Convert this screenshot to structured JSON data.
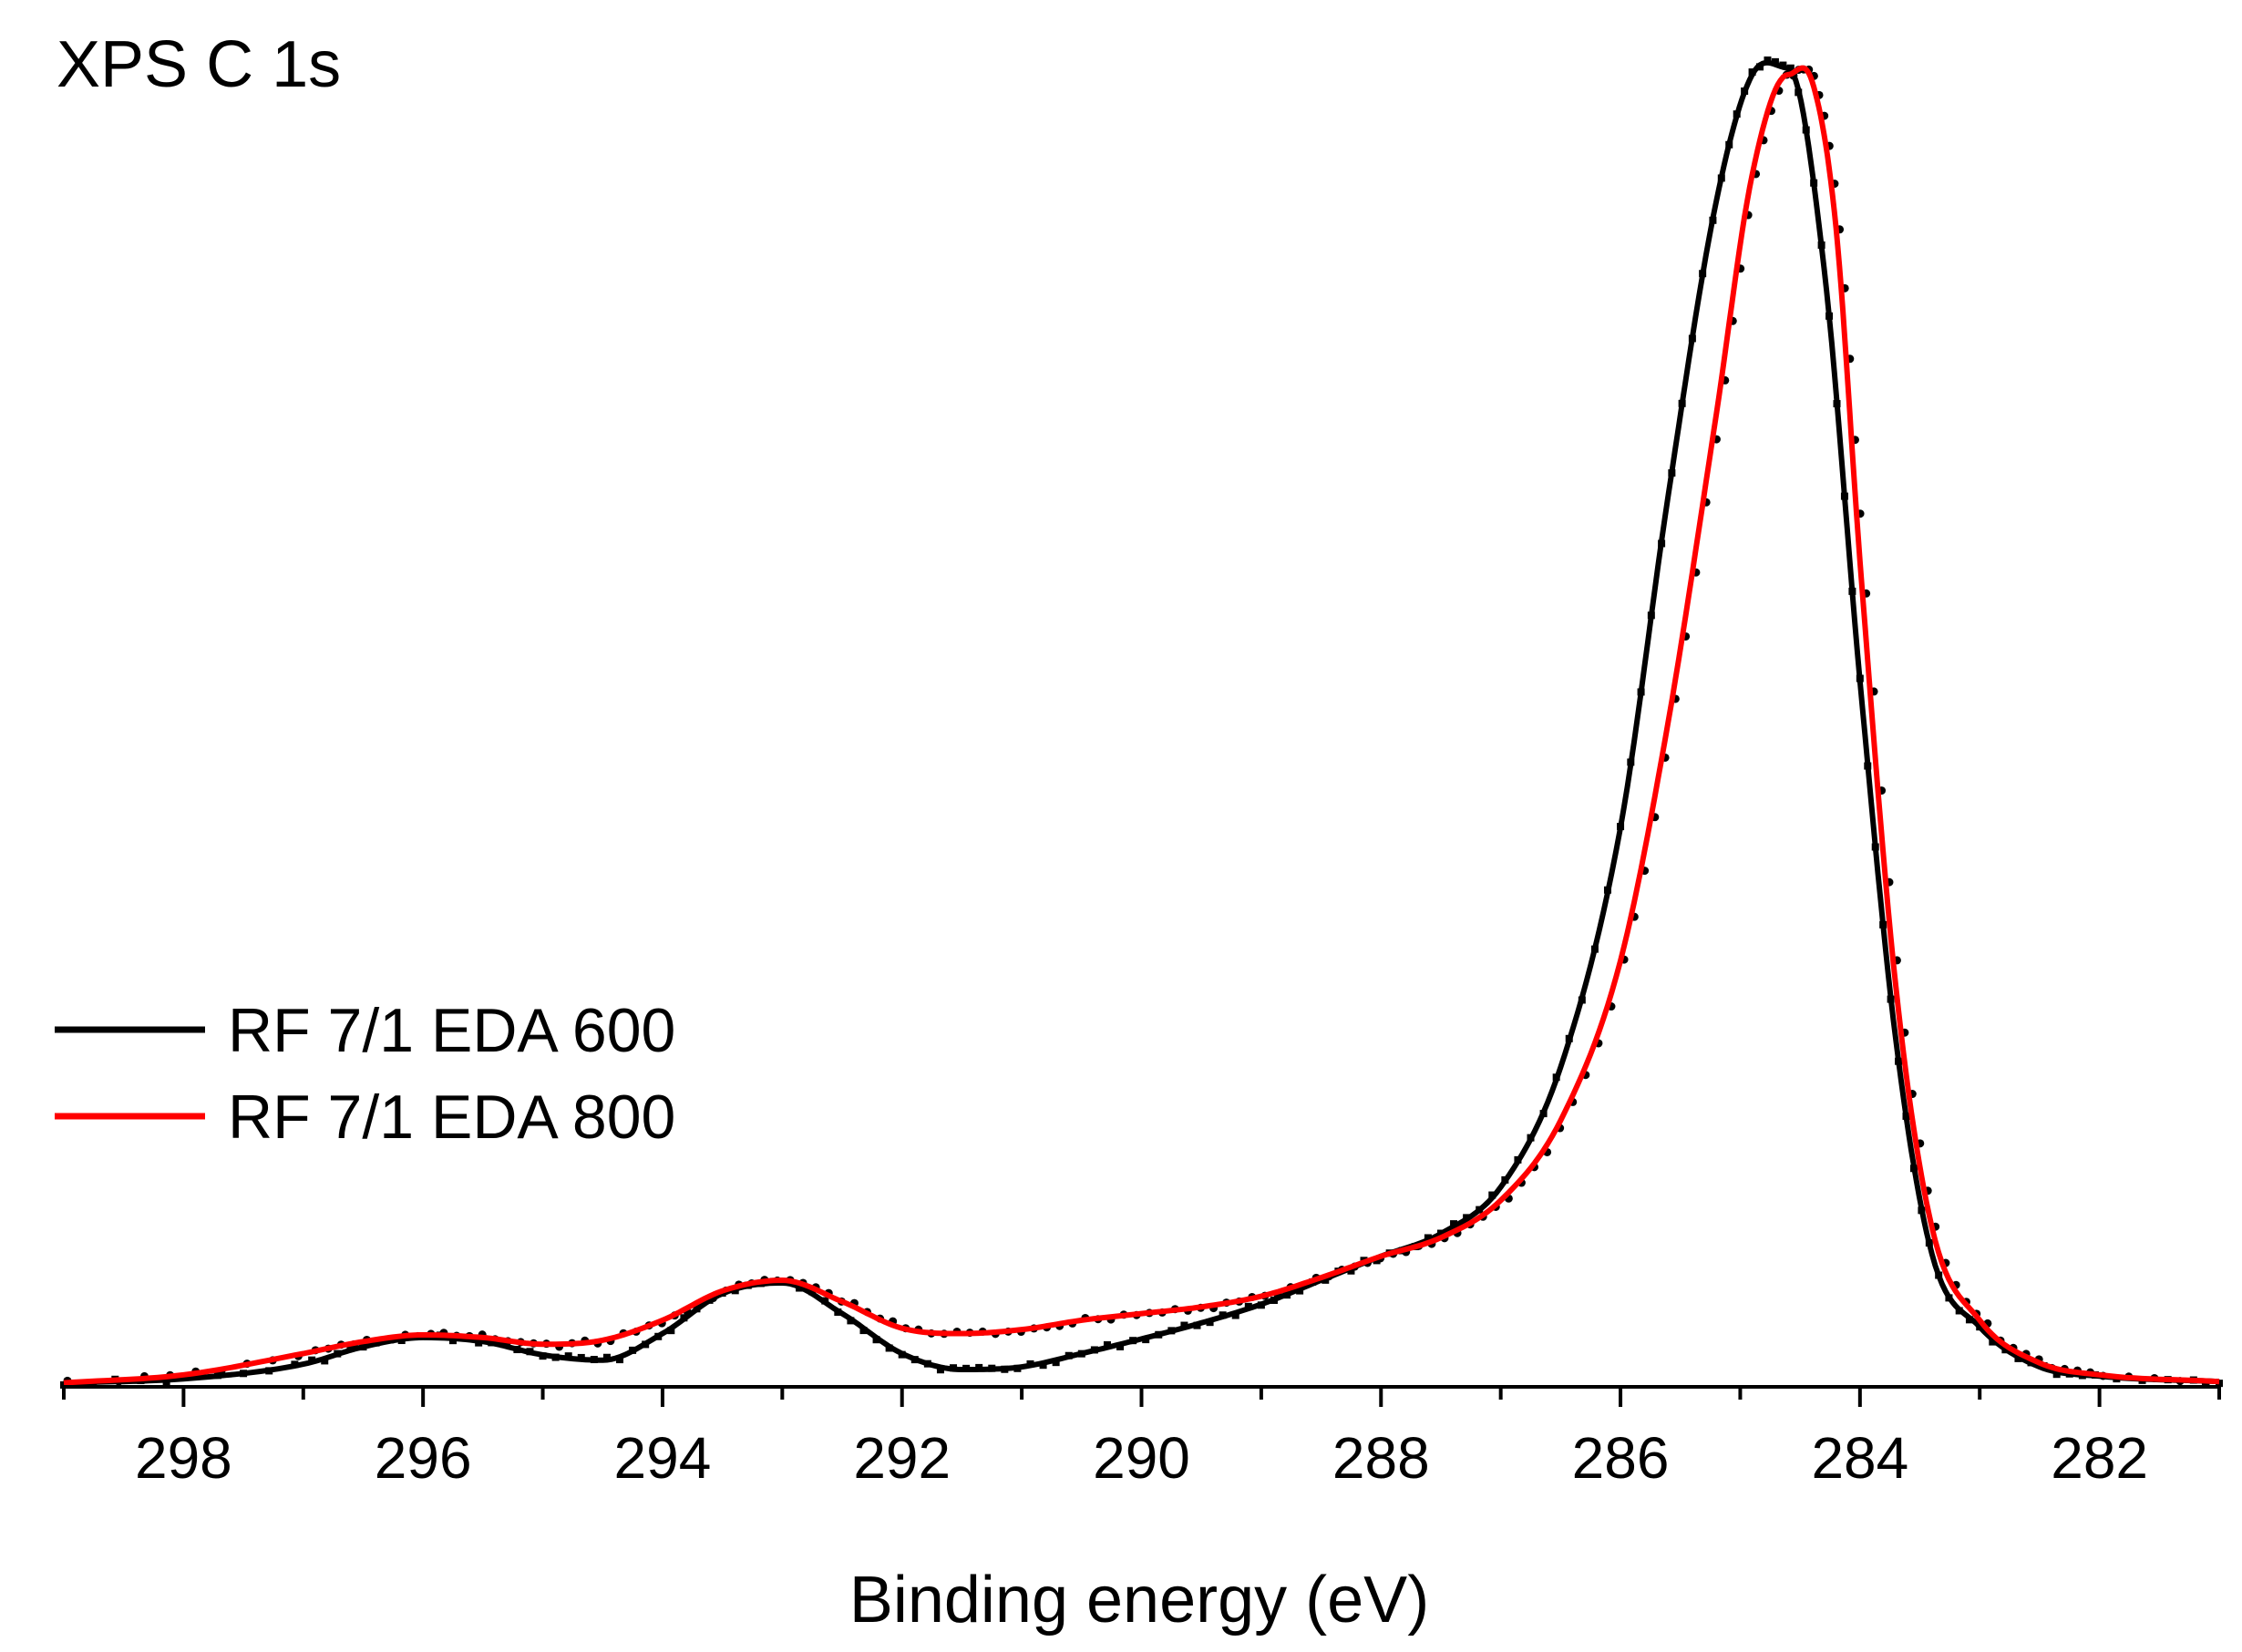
{
  "chart_data": {
    "type": "line",
    "title": "XPS C 1s",
    "xlabel": "Binding energy (eV)",
    "ylabel": "",
    "xlim": [
      299,
      281
    ],
    "ylim": [
      0,
      1.0
    ],
    "x_reversed": true,
    "x_ticks": [
      298,
      296,
      294,
      292,
      290,
      288,
      286,
      284,
      282
    ],
    "x_tick_labels": [
      "298",
      "296",
      "294",
      "292",
      "290",
      "288",
      "286",
      "284",
      "282"
    ],
    "grid": false,
    "legend_position": "left",
    "series": [
      {
        "name": "RF 7/1 EDA 600",
        "color": "#000000",
        "marker": "square",
        "x": [
          299.0,
          298.0,
          297.0,
          296.5,
          296.0,
          295.5,
          295.0,
          294.5,
          294.0,
          293.5,
          293.0,
          292.5,
          292.0,
          291.5,
          291.0,
          290.5,
          290.0,
          289.5,
          289.0,
          288.5,
          288.0,
          287.5,
          287.0,
          286.5,
          286.0,
          285.6,
          285.2,
          284.9,
          284.6,
          284.3,
          284.0,
          283.7,
          283.4,
          283.0,
          282.5,
          282.0,
          281.0
        ],
        "y": [
          0.003,
          0.006,
          0.017,
          0.03,
          0.037,
          0.034,
          0.024,
          0.02,
          0.04,
          0.07,
          0.078,
          0.055,
          0.025,
          0.013,
          0.015,
          0.025,
          0.036,
          0.048,
          0.062,
          0.08,
          0.098,
          0.115,
          0.15,
          0.24,
          0.42,
          0.67,
          0.89,
          0.985,
          0.99,
          0.84,
          0.53,
          0.26,
          0.1,
          0.045,
          0.015,
          0.008,
          0.004
        ]
      },
      {
        "name": "RF 7/1 EDA 800",
        "color": "#ff0000",
        "marker": "circle",
        "x": [
          299.0,
          298.0,
          297.0,
          296.5,
          296.0,
          295.5,
          295.0,
          294.5,
          294.0,
          293.5,
          293.0,
          292.5,
          292.0,
          291.5,
          291.0,
          290.5,
          290.0,
          289.5,
          289.0,
          288.5,
          288.0,
          287.5,
          287.0,
          286.5,
          286.0,
          285.6,
          285.2,
          284.9,
          284.6,
          284.4,
          284.2,
          284.0,
          283.7,
          283.4,
          283.0,
          282.5,
          282.0,
          281.0
        ],
        "y": [
          0.003,
          0.009,
          0.025,
          0.034,
          0.039,
          0.037,
          0.032,
          0.035,
          0.05,
          0.072,
          0.08,
          0.064,
          0.044,
          0.04,
          0.043,
          0.05,
          0.055,
          0.06,
          0.068,
          0.082,
          0.098,
          0.112,
          0.14,
          0.2,
          0.32,
          0.5,
          0.73,
          0.91,
          0.985,
          0.98,
          0.87,
          0.62,
          0.3,
          0.12,
          0.05,
          0.018,
          0.009,
          0.004
        ]
      }
    ]
  }
}
